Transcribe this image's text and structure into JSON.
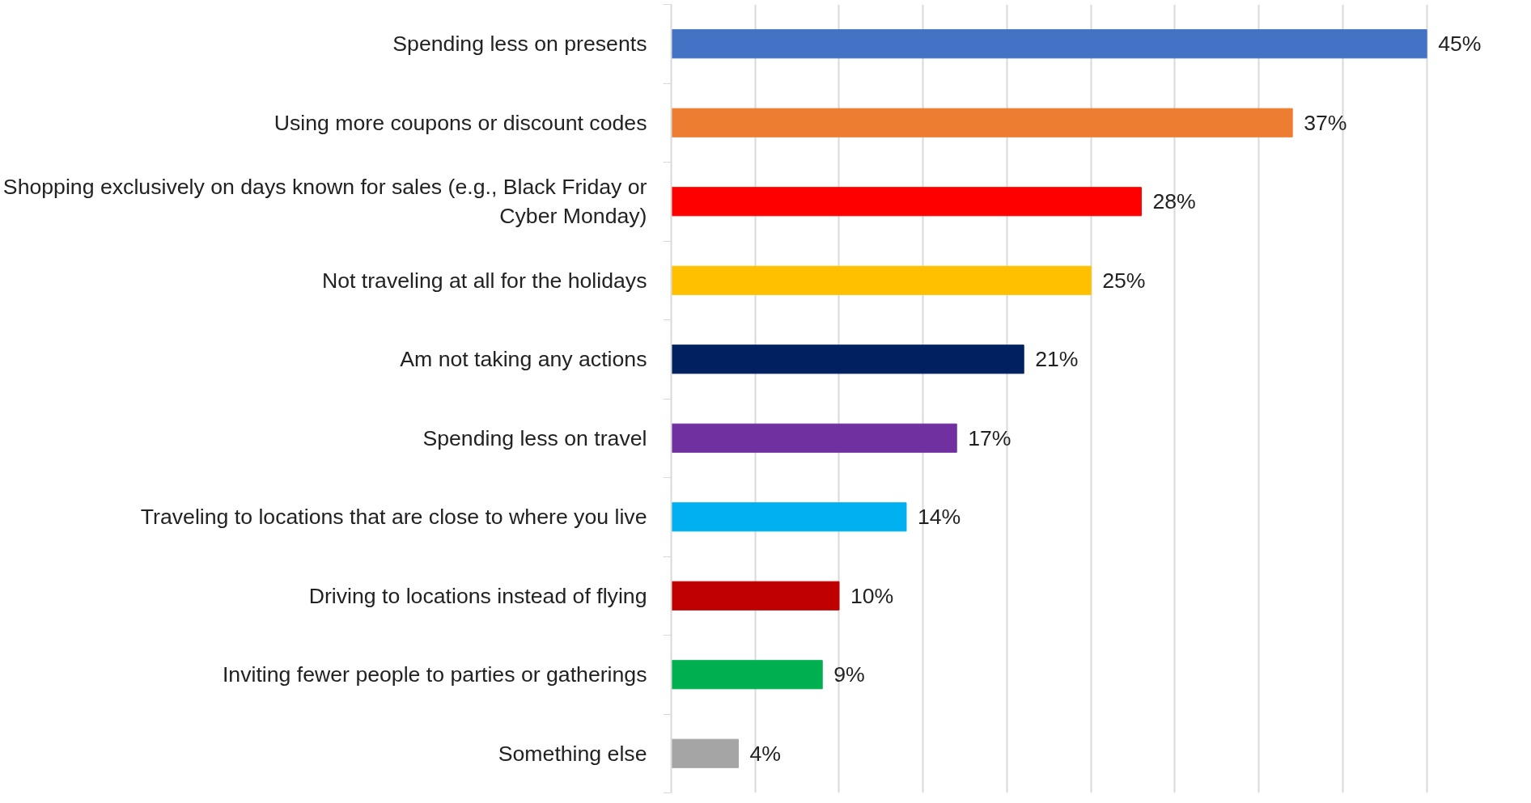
{
  "chart_data": {
    "type": "bar",
    "orientation": "horizontal",
    "categories": [
      "Spending less on presents",
      "Using more coupons or discount codes",
      "Shopping exclusively on days known for sales (e.g., Black Friday or Cyber Monday)",
      "Not traveling at all for the holidays",
      "Am not taking any actions",
      "Spending less on travel",
      "Traveling to locations that are close to where you live",
      "Driving to locations instead of flying",
      "Inviting fewer people to parties or gatherings",
      "Something else"
    ],
    "values": [
      45,
      37,
      28,
      25,
      21,
      17,
      14,
      10,
      9,
      4
    ],
    "colors": [
      "#4472c4",
      "#ed7d31",
      "#ff0000",
      "#ffc000",
      "#002060",
      "#7030a0",
      "#00b0f0",
      "#c00000",
      "#00b050",
      "#a5a5a5"
    ],
    "value_labels": [
      "45%",
      "37%",
      "28%",
      "25%",
      "21%",
      "17%",
      "14%",
      "10%",
      "9%",
      "4%"
    ],
    "xticks": [
      {
        "value": 0,
        "label": null
      },
      {
        "value": 5,
        "label": null
      },
      {
        "value": 10,
        "label": null
      },
      {
        "value": 15,
        "label": null
      },
      {
        "value": 20,
        "label": null
      },
      {
        "value": 25,
        "label": null
      },
      {
        "value": 30,
        "label": null
      },
      {
        "value": 35,
        "label": null
      },
      {
        "value": 40,
        "label": null
      },
      {
        "value": 45,
        "label": null
      }
    ],
    "grid": "x",
    "tick_labels": "y"
  }
}
